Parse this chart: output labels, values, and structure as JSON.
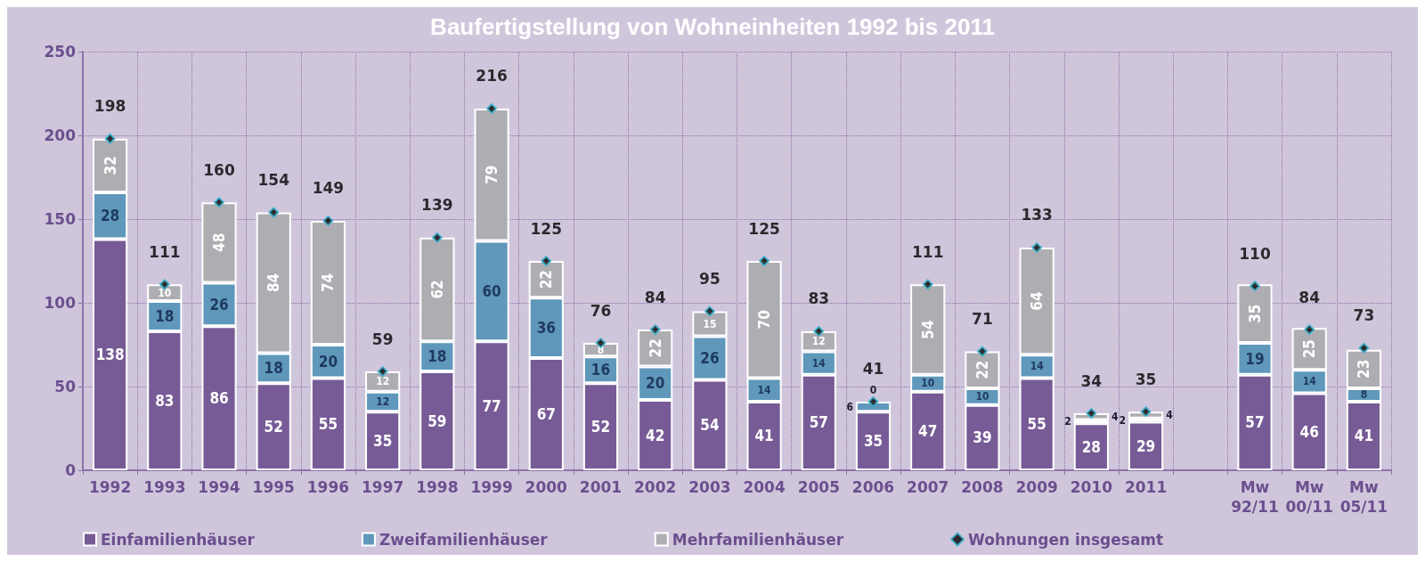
{
  "chart_data": {
    "type": "bar",
    "stacked": true,
    "title": "Baufertigstellung von Wohneinheiten 1992 bis 2011",
    "categories": [
      "1992",
      "1993",
      "1994",
      "1995",
      "1996",
      "1997",
      "1998",
      "1999",
      "2000",
      "2001",
      "2002",
      "2003",
      "2004",
      "2005",
      "2006",
      "2007",
      "2008",
      "2009",
      "2010",
      "2011",
      null,
      "Mw\n92/11",
      "Mw\n00/11",
      "Mw\n05/11"
    ],
    "series": [
      {
        "name": "Einfamilienhäuser",
        "color": "#775b96",
        "values": [
          138,
          83,
          86,
          52,
          55,
          35,
          59,
          77,
          67,
          52,
          42,
          54,
          41,
          57,
          35,
          47,
          39,
          55,
          28,
          29,
          null,
          57,
          46,
          41
        ]
      },
      {
        "name": "Zweifamilienhäuser",
        "color": "#5f98bb",
        "values": [
          28,
          18,
          26,
          18,
          20,
          12,
          18,
          60,
          36,
          16,
          20,
          26,
          14,
          14,
          6,
          10,
          10,
          14,
          2,
          2,
          null,
          19,
          14,
          8
        ]
      },
      {
        "name": "Mehrfamilienhäuser",
        "color": "#aeadb2",
        "values": [
          32,
          10,
          48,
          84,
          74,
          12,
          62,
          79,
          22,
          8,
          22,
          15,
          70,
          12,
          0,
          54,
          22,
          64,
          4,
          4,
          null,
          35,
          25,
          23
        ]
      },
      {
        "name": "Wohnungen insgesamt",
        "type": "scatter",
        "color": "#000000",
        "values": [
          198,
          111,
          160,
          154,
          149,
          59,
          139,
          216,
          125,
          76,
          84,
          95,
          125,
          83,
          41,
          111,
          71,
          133,
          34,
          35,
          null,
          110,
          84,
          73
        ]
      }
    ],
    "ylim": [
      0,
      250
    ],
    "yticks": [
      0,
      50,
      100,
      150,
      200,
      250
    ],
    "grid": true,
    "legend": "bottom",
    "marker": "diamond",
    "data_labels": true
  }
}
